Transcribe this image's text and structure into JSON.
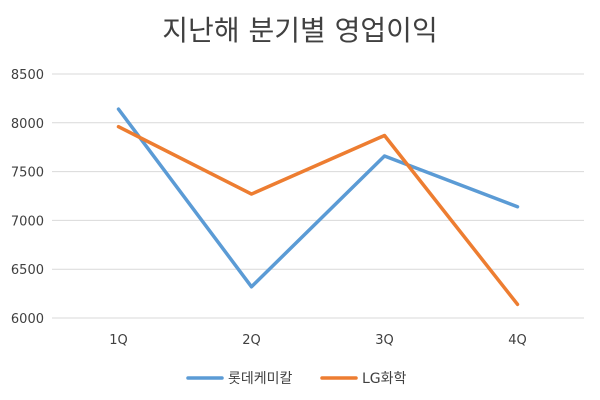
{
  "chart_data": {
    "type": "line",
    "title": "지난해 분기별 영업이익",
    "categories": [
      "1Q",
      "2Q",
      "3Q",
      "4Q"
    ],
    "series": [
      {
        "name": "롯데케미칼",
        "values": [
          8140,
          6320,
          7660,
          7140
        ],
        "color": "#5b9bd5"
      },
      {
        "name": "LG화학",
        "values": [
          7960,
          7270,
          7870,
          6140
        ],
        "color": "#ed7d31"
      }
    ],
    "ylim": [
      6000,
      8500
    ],
    "yticks": [
      6000,
      6500,
      7000,
      7500,
      8000,
      8500
    ],
    "grid": true,
    "legend": "bottom",
    "xlabel": "",
    "ylabel": ""
  }
}
